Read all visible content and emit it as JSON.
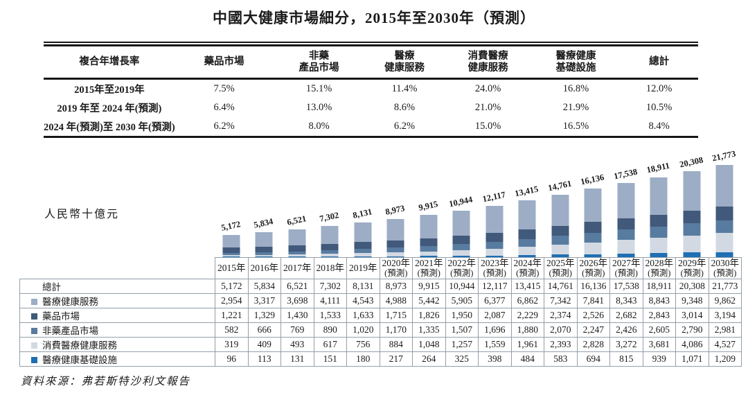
{
  "title": "中國大健康市場細分，2015年至2030年（預測）",
  "cagr_table": {
    "corner_header": "複合年增長率",
    "column_headers": [
      [
        "藥品市場"
      ],
      [
        "非藥",
        "產品市場"
      ],
      [
        "醫療",
        "健康服務"
      ],
      [
        "消費醫療",
        "健康服務"
      ],
      [
        "醫療健康",
        "基礎設施"
      ],
      [
        "總計"
      ]
    ],
    "rows": [
      {
        "label": "2015年至2019年",
        "values": [
          "7.5%",
          "15.1%",
          "11.4%",
          "24.0%",
          "16.8%",
          "12.0%"
        ]
      },
      {
        "label": "2019 年至 2024 年(預測)",
        "values": [
          "6.4%",
          "13.0%",
          "8.6%",
          "21.0%",
          "21.9%",
          "10.5%"
        ]
      },
      {
        "label": "2024 年(預測)至 2030 年(預測)",
        "values": [
          "6.2%",
          "8.0%",
          "6.2%",
          "15.0%",
          "16.5%",
          "8.4%"
        ]
      }
    ]
  },
  "chart_data": {
    "type": "bar",
    "stacked": true,
    "title": "中國大健康市場細分，2015年至2030年（預測）",
    "ylabel": "人民幣十億元",
    "ylim": [
      0,
      22000
    ],
    "grid": false,
    "legend_position": "left-table",
    "categories": [
      "2015年",
      "2016年",
      "2017年",
      "2018年",
      "2019年",
      "2020年",
      "2021年",
      "2022年",
      "2023年",
      "2024年",
      "2025年",
      "2026年",
      "2027年",
      "2028年",
      "2029年",
      "2030年"
    ],
    "forecast_note": "(預測)",
    "forecast_from_index": 5,
    "totals": [
      5172,
      5834,
      6521,
      7302,
      8131,
      8973,
      9915,
      10944,
      12117,
      13415,
      14761,
      16136,
      17538,
      18911,
      20308,
      21773
    ],
    "series": [
      {
        "name": "醫療健康服務",
        "color": "#9CADC5",
        "values": [
          2954,
          3317,
          3698,
          4111,
          4543,
          4988,
          5442,
          5905,
          6377,
          6862,
          7342,
          7841,
          8343,
          8843,
          9348,
          9862
        ]
      },
      {
        "name": "藥品市場",
        "color": "#41597A",
        "values": [
          1221,
          1329,
          1430,
          1533,
          1633,
          1715,
          1826,
          1950,
          2087,
          2229,
          2374,
          2526,
          2682,
          2843,
          3014,
          3194
        ]
      },
      {
        "name": "非藥產品市場",
        "color": "#587BA0",
        "values": [
          582,
          666,
          769,
          890,
          1020,
          1170,
          1335,
          1507,
          1696,
          1880,
          2070,
          2247,
          2426,
          2605,
          2790,
          2981
        ]
      },
      {
        "name": "消費醫療健康服務",
        "color": "#D2D9E2",
        "values": [
          319,
          409,
          493,
          617,
          756,
          884,
          1048,
          1257,
          1559,
          1961,
          2393,
          2828,
          3272,
          3681,
          4086,
          4527
        ]
      },
      {
        "name": "醫療健康基礎設施",
        "color": "#1E6FB3",
        "values": [
          96,
          113,
          131,
          151,
          180,
          217,
          264,
          325,
          398,
          484,
          583,
          694,
          815,
          939,
          1071,
          1209
        ]
      }
    ],
    "stack_order_bottom_to_top": [
      "醫療健康基礎設施",
      "消費醫療健康服務",
      "非藥產品市場",
      "藥品市場",
      "醫療健康服務"
    ],
    "total_row_label": "總計"
  },
  "source": "資料來源：弗若斯特沙利文報告"
}
